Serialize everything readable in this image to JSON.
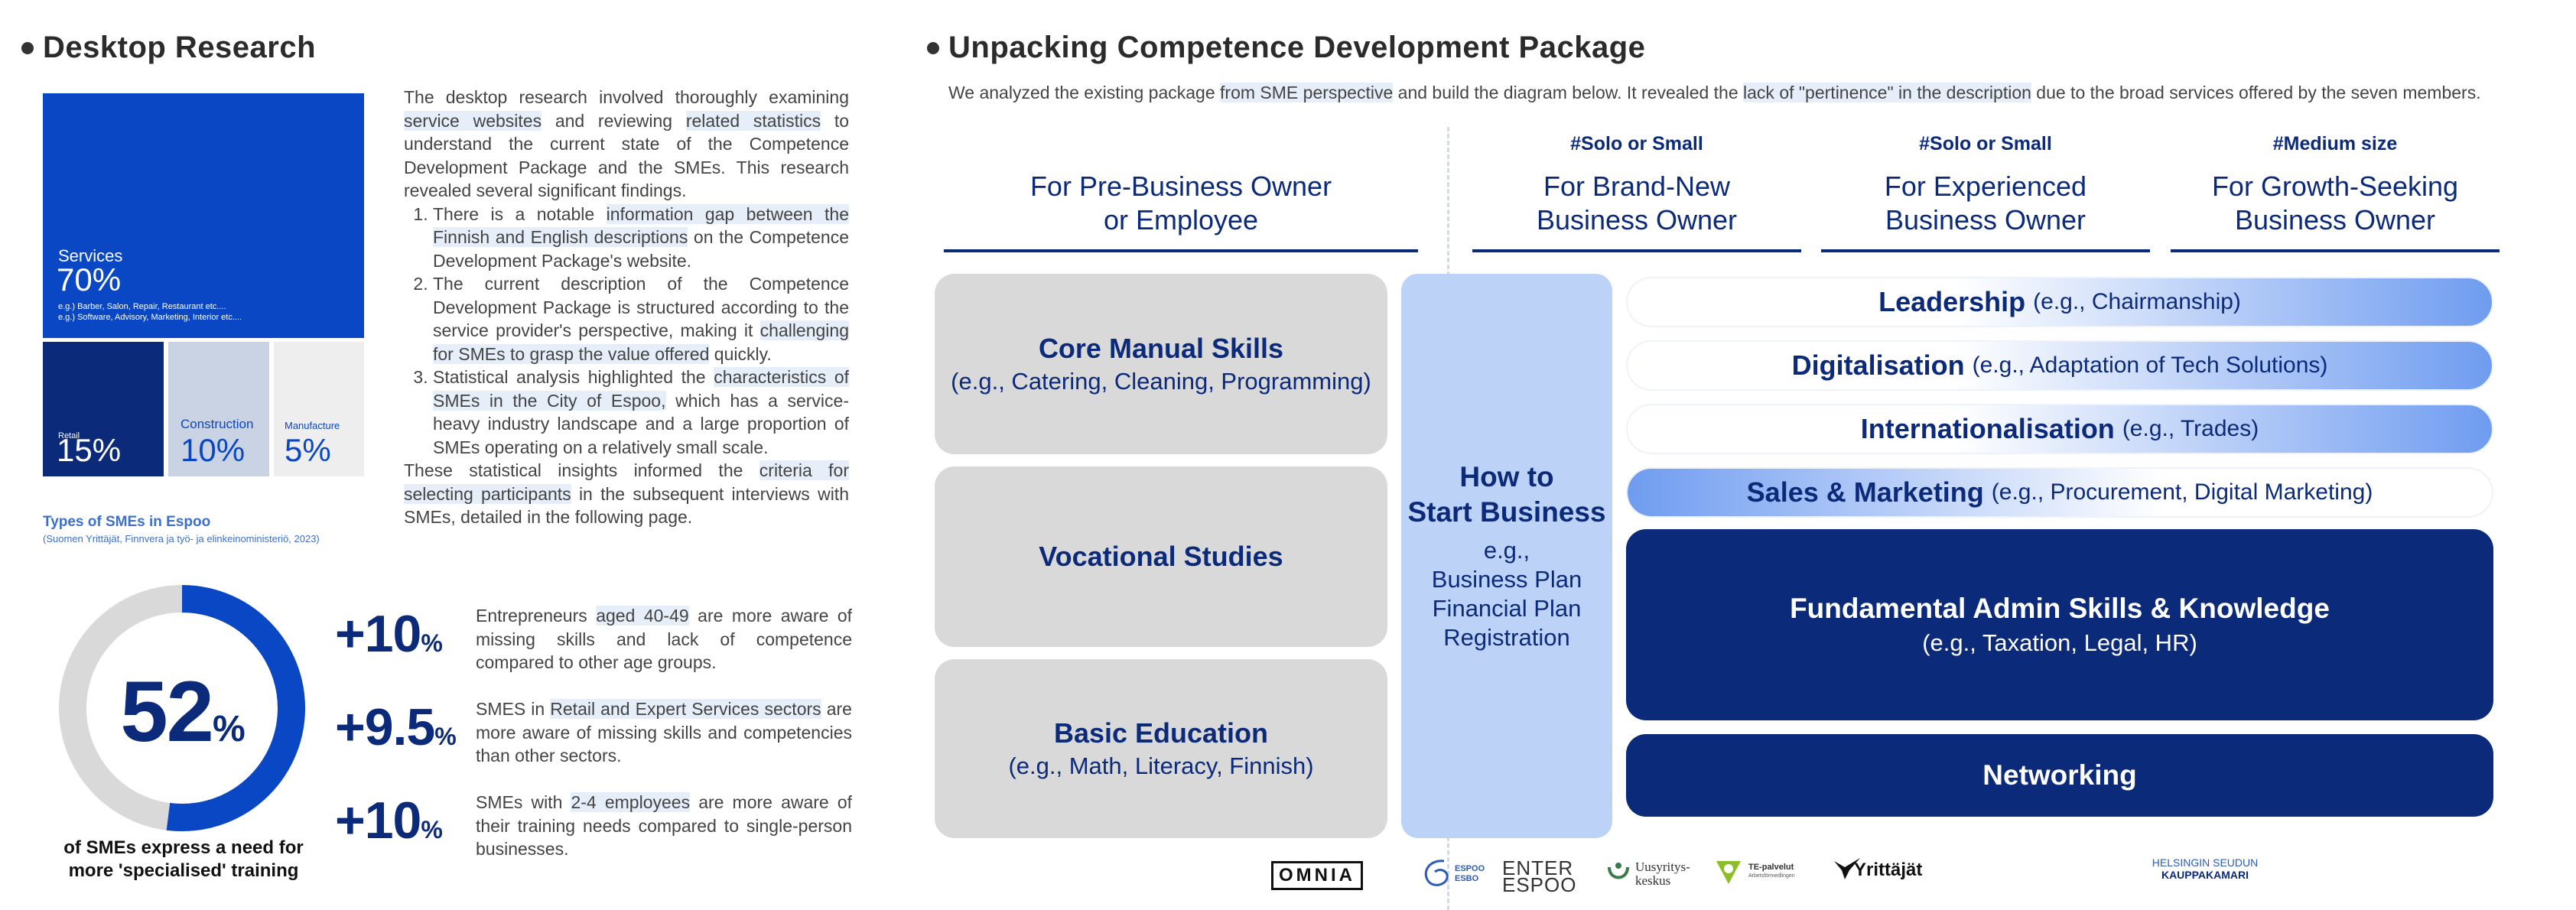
{
  "left": {
    "title": "Desktop Research",
    "treemap": {
      "services": {
        "name": "Services",
        "pct": "70%",
        "note1": "e.g.) Barber, Salon, Repair, Restaurant etc....",
        "note2": "e.g.) Software, Advisory, Marketing, Interior etc...."
      },
      "retail": {
        "name": "Retail",
        "pct": "15%"
      },
      "construction": {
        "name": "Construction",
        "pct": "10%"
      },
      "manufacture": {
        "name": "Manufacture",
        "pct": "5%"
      },
      "caption": "Types of SMEs in Espoo",
      "source": "(Suomen Yrittäjät, Finnvera ja työ- ja elinkeinoministeriö, 2023)"
    },
    "desc": {
      "p1a": "The desktop research involved thoroughly examining ",
      "p1h1": "service websites",
      "p1b": " and reviewing ",
      "p1h2": "related statistics",
      "p1c": " to understand the current state of the Competence Development Package and the SMEs. This research revealed several significant findings.",
      "li1a": "There is a notable ",
      "li1h": "information gap between the Finnish and English descriptions",
      "li1b": " on the Competence Development Package's website.",
      "li2a": "The current description of the Competence Development Package is structured according to the service provider's perspective, making it ",
      "li2h": "challenging for SMEs to grasp the value offered",
      "li2b": " quickly.",
      "li3a": "Statistical analysis highlighted the ",
      "li3h": "characteristics of SMEs in the City of Espoo,",
      "li3b": " which has a service-heavy industry landscape and a large proportion of SMEs operating on a relatively small scale.",
      "p2a": "These statistical insights informed the ",
      "p2h": "criteria for selecting participants",
      "p2b": " in the subsequent interviews with SMEs, detailed in the following page."
    },
    "donut": {
      "value": 52,
      "num": "52",
      "pct": "%",
      "caption1": "of SMEs express a need for",
      "caption2": "more 'specialised' training",
      "color": "#0a47c4",
      "track": "#d9d9d9"
    },
    "stats": [
      {
        "num": "+10",
        "pct": "%",
        "a": "Entrepreneurs ",
        "h": "aged 40-49",
        "b": " are more aware of missing skills and lack of competence compared to other age groups."
      },
      {
        "num": "+9.5",
        "pct": "%",
        "a": "SMES in ",
        "h": "Retail and Expert Services sectors",
        "b": " are more aware of missing skills and competencies than other sectors."
      },
      {
        "num": "+10",
        "pct": "%",
        "a": "SMEs with ",
        "h": "2-4 employees",
        "b": " are more aware of their training needs compared to single-person businesses."
      }
    ]
  },
  "right": {
    "title": "Unpacking Competence Development Package",
    "intro": {
      "a": "We analyzed the existing package ",
      "h1": "from SME perspective",
      "b": " and build the diagram below. It revealed the ",
      "h2": "lack of \"pertinence\" in the description",
      "c": " due to the broad services offered by the seven members."
    },
    "columns": [
      {
        "tag": "",
        "line1": "For Pre-Business Owner",
        "line2": "or Employee"
      },
      {
        "tag": "#Solo or Small",
        "line1": "For Brand-New",
        "line2": "Business Owner"
      },
      {
        "tag": "#Solo or Small",
        "line1": "For Experienced",
        "line2": "Business Owner"
      },
      {
        "tag": "#Medium size",
        "line1": "For Growth-Seeking",
        "line2": "Business Owner"
      }
    ],
    "grey_boxes": [
      {
        "title": "Core Manual Skills",
        "sub": "(e.g., Catering, Cleaning, Programming)"
      },
      {
        "title": "Vocational Studies",
        "sub": ""
      },
      {
        "title": "Basic Education",
        "sub": "(e.g., Math, Literacy, Finnish)"
      }
    ],
    "howto": {
      "t1": "How to",
      "t2": "Start Business",
      "s1": "e.g.,",
      "s2": "Business Plan",
      "s3": "Financial Plan",
      "s4": "Registration"
    },
    "pills": [
      {
        "title": "Leadership",
        "sub": "(e.g., Chairmanship)"
      },
      {
        "title": "Digitalisation",
        "sub": "(e.g., Adaptation of Tech Solutions)"
      },
      {
        "title": "Internationalisation",
        "sub": "(e.g., Trades)"
      },
      {
        "title": "Sales & Marketing",
        "sub": "(e.g., Procurement, Digital Marketing)"
      }
    ],
    "dark_boxes": [
      {
        "title": "Fundamental Admin Skills & Knowledge",
        "sub": "(e.g., Taxation, Legal, HR)"
      },
      {
        "title": "Networking",
        "sub": ""
      }
    ],
    "logos": {
      "omnia": "OMNIA",
      "espoo1": "ESPOO",
      "espoo2": "ESBO",
      "enter1": "ENTER",
      "enter2": "ESPOO",
      "uusyritys1": "Uusyritys-",
      "uusyritys2": "keskus",
      "te1": "TE-palvelut",
      "te2": "Arbetsförmedlingen",
      "yrittajat": "Yrittäjät",
      "helsinki1": "HELSINGIN SEUDUN",
      "helsinki2": "KAUPPAKAMARI"
    }
  }
}
